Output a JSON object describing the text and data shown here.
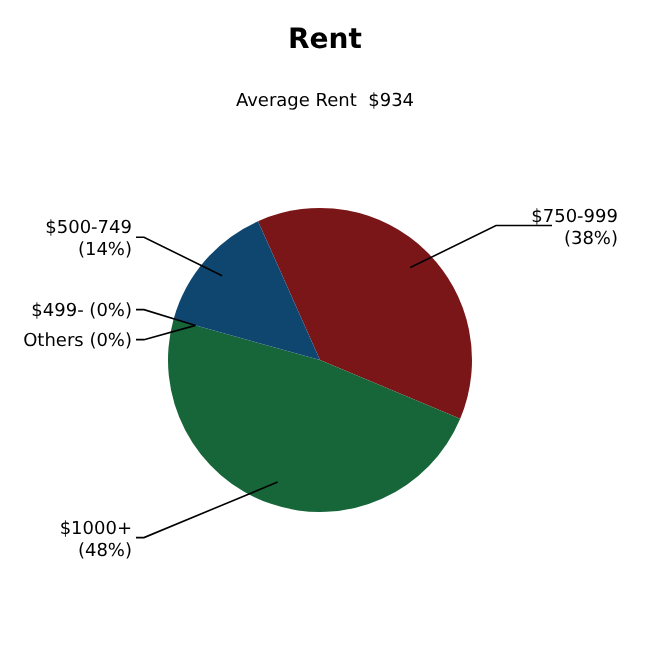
{
  "chart_data": {
    "type": "pie",
    "title": "Rent",
    "subtitle": "Average Rent  $934",
    "categories": [
      "$750-999",
      "$1000+",
      "$499-",
      "Others",
      "$500-749"
    ],
    "values": [
      38,
      48,
      0,
      0,
      14
    ],
    "value_labels": [
      "(38%)",
      "(48%)",
      "(0%)",
      "(0%)",
      "(14%)"
    ],
    "colors": [
      "#7a1518",
      "#17663a",
      "#5a5a5a",
      "#8c8c8c",
      "#0f4670"
    ]
  }
}
